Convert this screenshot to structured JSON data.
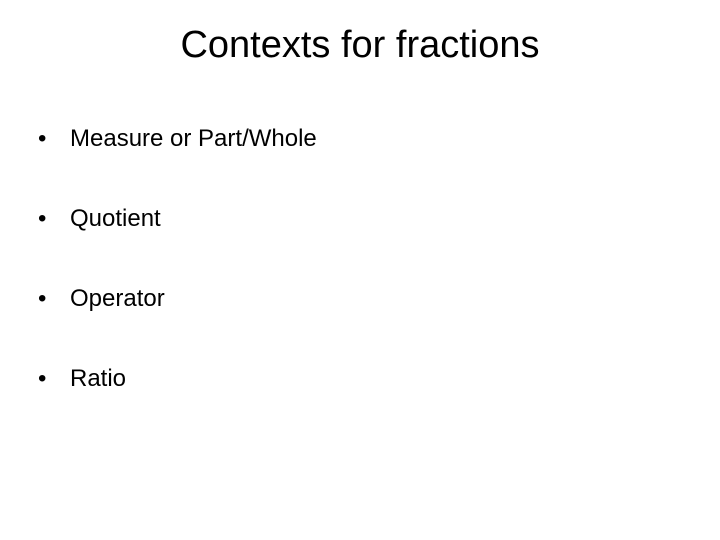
{
  "slide": {
    "title": "Contexts for fractions",
    "title_fontsize": 38,
    "bullets": [
      "Measure or Part/Whole",
      "Quotient",
      "Operator",
      "Ratio"
    ],
    "bullet_fontsize": 24,
    "background_color": "#ffffff",
    "text_color": "#000000"
  }
}
